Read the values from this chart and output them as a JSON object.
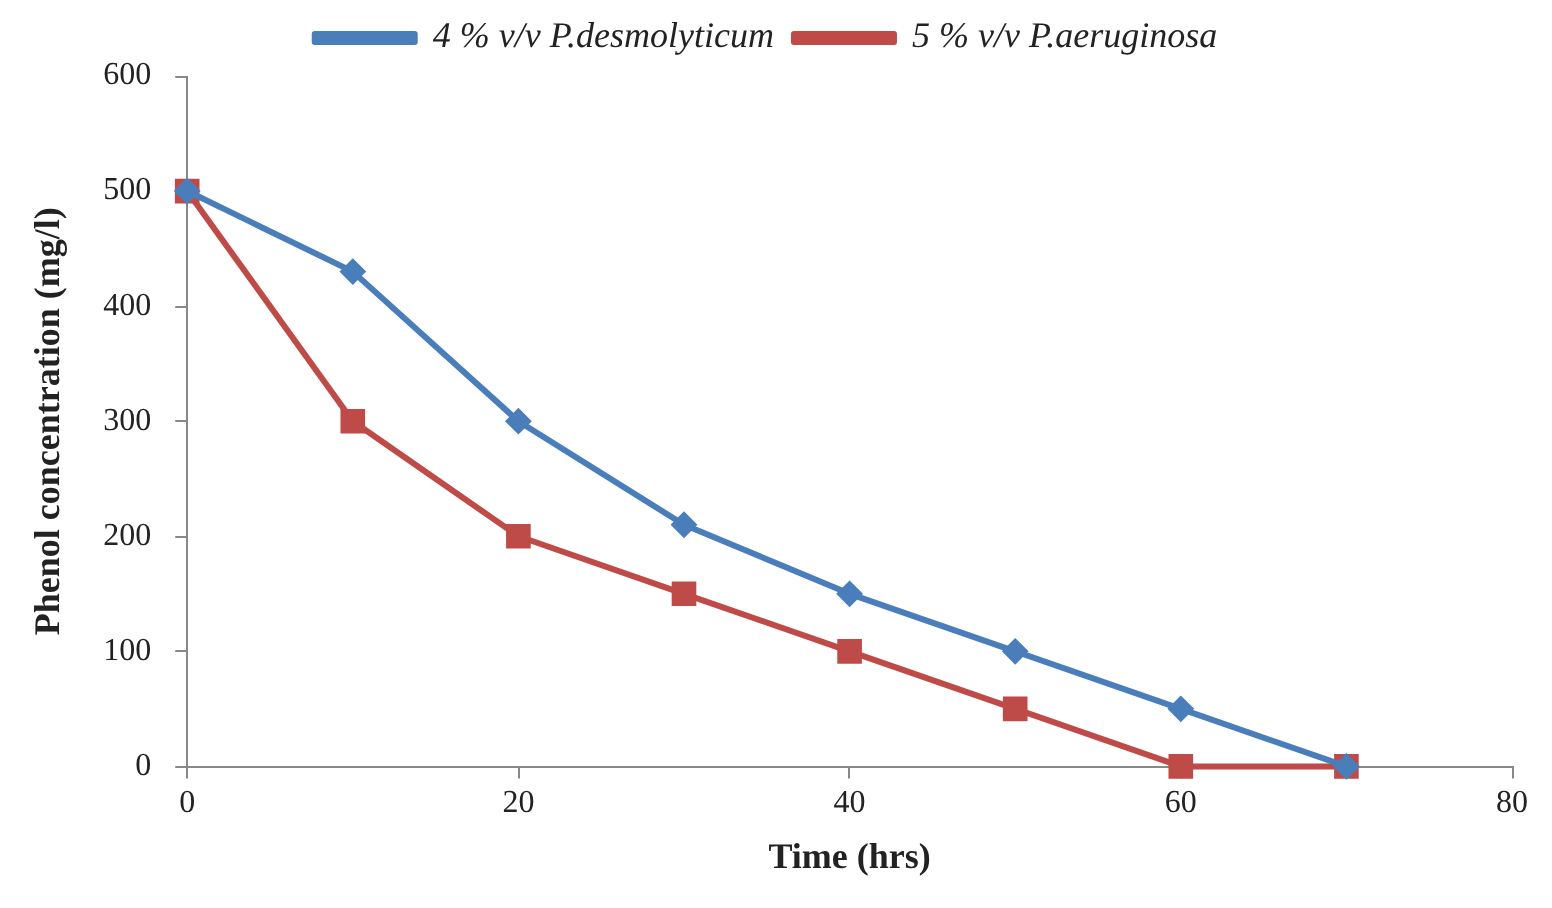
{
  "chart_data": {
    "type": "line",
    "xlabel": "Time (hrs)",
    "ylabel": "Phenol concentration (mg/l)",
    "x": [
      0,
      10,
      20,
      30,
      40,
      50,
      60,
      70
    ],
    "series": [
      {
        "name": "4 % v/v P.desmolyticum",
        "color": "#4a7ebb",
        "marker": "diamond",
        "values": [
          500,
          430,
          300,
          210,
          150,
          100,
          50,
          0
        ]
      },
      {
        "name": "5 % v/v P.aeruginosa",
        "color": "#be4b48",
        "marker": "square",
        "values": [
          500,
          300,
          200,
          150,
          100,
          50,
          0,
          0
        ]
      }
    ],
    "xlim": [
      0,
      80
    ],
    "xticks": [
      0,
      20,
      40,
      60,
      80
    ],
    "ylim": [
      0,
      600
    ],
    "yticks": [
      0,
      100,
      200,
      300,
      400,
      500,
      600
    ],
    "grid": false,
    "legend": "top",
    "line_style": "solid"
  }
}
